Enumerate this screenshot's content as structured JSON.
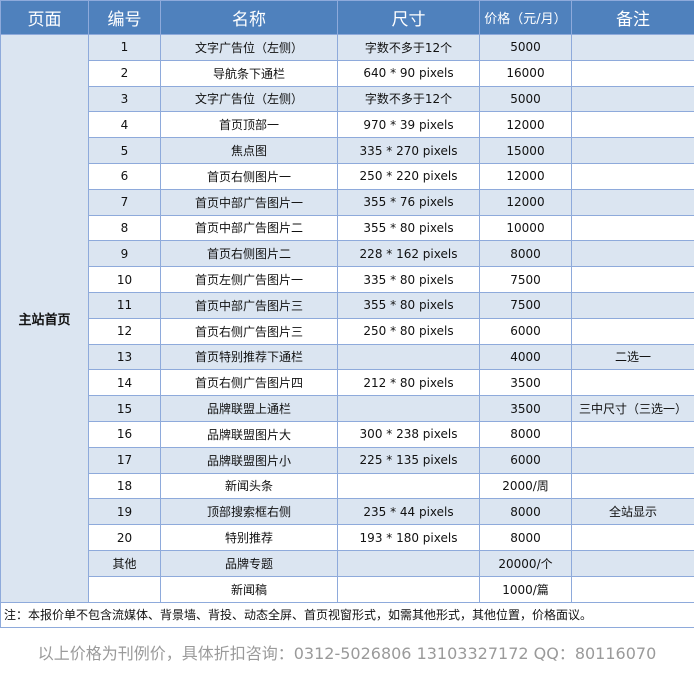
{
  "table": {
    "header": [
      "页面",
      "编号",
      "名称",
      "尺寸",
      "价格（元/月）",
      "备注"
    ],
    "page": "主站首页",
    "rows": [
      [
        "1",
        "文字广告位（左侧）",
        "字数不多于12个",
        "5000",
        null
      ],
      [
        "2",
        "导航条下通栏",
        "640 * 90 pixels",
        "16000",
        null
      ],
      [
        "3",
        "文字广告位（左侧）",
        "字数不多于12个",
        "5000",
        null
      ],
      [
        "4",
        "首页顶部一",
        "970 * 39 pixels",
        "12000",
        null
      ],
      [
        "5",
        "焦点图",
        "335 * 270 pixels",
        "15000",
        null
      ],
      [
        "6",
        "首页右侧图片一",
        "250 * 220 pixels",
        "12000",
        null
      ],
      [
        "7",
        "首页中部广告图片一",
        "355 * 76 pixels",
        "12000",
        null
      ],
      [
        "8",
        "首页中部广告图片二",
        "355 * 80 pixels",
        "10000",
        null
      ],
      [
        "9",
        "首页右侧图片二",
        "228 * 162 pixels",
        "8000",
        null
      ],
      [
        "10",
        "首页左侧广告图片一",
        "335 * 80 pixels",
        "7500",
        null
      ],
      [
        "11",
        "首页中部广告图片三",
        "355 * 80 pixels",
        "7500",
        null
      ],
      [
        "12",
        "首页右侧广告图片三",
        "250 * 80 pixels",
        "6000",
        null
      ],
      [
        "13",
        "首页特别推荐下通栏",
        null,
        "4000",
        "二选一"
      ],
      [
        "14",
        "首页右侧广告图片四",
        "212 * 80 pixels",
        "3500",
        null
      ],
      [
        "15",
        "品牌联盟上通栏",
        null,
        "3500",
        "三中尺寸（三选一）"
      ],
      [
        "16",
        "品牌联盟图片大",
        "300 * 238 pixels",
        "8000",
        null
      ],
      [
        "17",
        "品牌联盟图片小",
        "225 * 135 pixels",
        "6000",
        null
      ],
      [
        "18",
        "新闻头条",
        null,
        "2000/周",
        null
      ],
      [
        "19",
        "顶部搜索框右侧",
        "235 * 44 pixels",
        "8000",
        "全站显示"
      ],
      [
        "20",
        "特别推荐",
        "193 * 180 pixels",
        "8000",
        null
      ],
      [
        "其他",
        "品牌专题",
        null,
        "20000/个",
        null
      ],
      [
        null,
        "新闻稿",
        null,
        "1000/篇",
        null
      ]
    ]
  },
  "note": "注：本报价单不包含流媒体、背景墙、背投、动态全屏、首页视窗形式，如需其他形式，其他位置，价格面议。",
  "footer": "以上价格为刊例价，具体折扣咨询：0312-5026806 13103327172 QQ：80116070"
}
